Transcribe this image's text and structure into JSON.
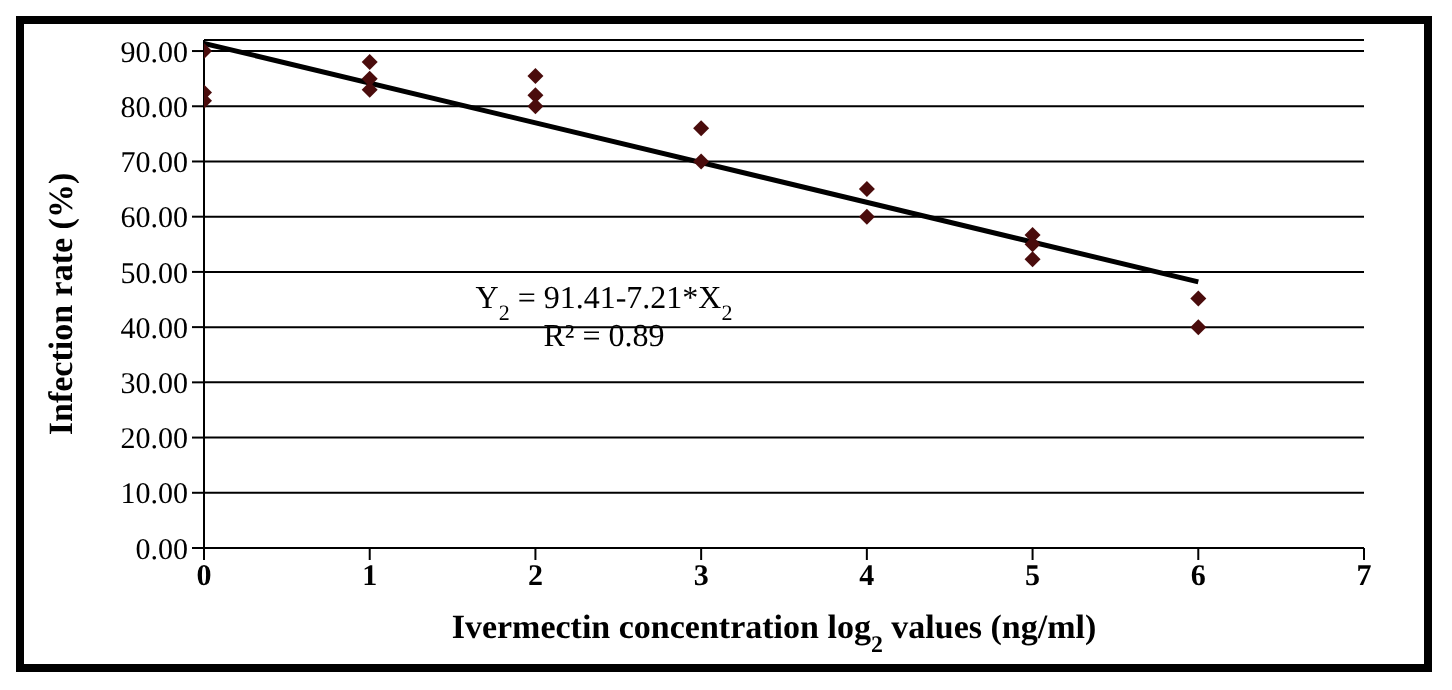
{
  "chart_data": {
    "type": "scatter",
    "xlabel": "Ivermectin concentration log$_{2}$ values (ng/ml)",
    "ylabel": "Infection rate (%)",
    "xlim": [
      0,
      7
    ],
    "xticks": [
      0,
      1,
      2,
      3,
      4,
      5,
      6,
      7
    ],
    "ylim": [
      0,
      92
    ],
    "yticks": [
      {
        "value": 0,
        "label": "0.00"
      },
      {
        "value": 10,
        "label": "10.00"
      },
      {
        "value": 20,
        "label": "20.00"
      },
      {
        "value": 30,
        "label": "30.00"
      },
      {
        "value": 40,
        "label": "40.00"
      },
      {
        "value": 50,
        "label": "50.00"
      },
      {
        "value": 60,
        "label": "60.00"
      },
      {
        "value": 70,
        "label": "70.00"
      },
      {
        "value": 80,
        "label": "80.00"
      },
      {
        "value": 90,
        "label": "90.00"
      }
    ],
    "grid": "y",
    "legend": false,
    "marker": "diamond",
    "annotations": [
      "Y$_{2}$ = 91.41-7.21*X$_{2}$",
      "R² = 0.89"
    ],
    "series": [
      {
        "color": "#4a0c0c",
        "x": [
          0,
          0,
          0,
          1,
          1,
          1,
          2,
          2,
          2,
          3,
          3,
          4,
          4,
          5,
          5,
          5,
          6,
          6
        ],
        "values": [
          90,
          82.5,
          81,
          88,
          85,
          83,
          85.5,
          82,
          80,
          76,
          70,
          65,
          60,
          56.7,
          55,
          52.3,
          45.2,
          40
        ]
      },
      {
        "type": "line",
        "color": "#000000",
        "marker": "none",
        "x": [
          0,
          6
        ],
        "values": [
          91.4,
          48.2
        ]
      }
    ]
  }
}
